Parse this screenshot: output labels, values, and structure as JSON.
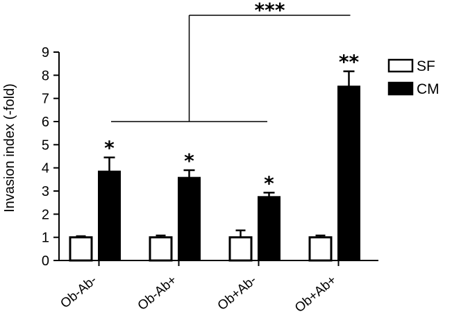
{
  "chart_data": {
    "type": "bar",
    "ylabel": "Invasion index (-fold)",
    "xlabel": "",
    "title": "",
    "ylim": [
      0,
      9
    ],
    "yticks": [
      "0",
      "1",
      "2",
      "3",
      "4",
      "5",
      "6",
      "7",
      "8",
      "9"
    ],
    "categories": [
      "Ob-Ab-",
      "Ob-Ab+",
      "Ob+Ab-",
      "Ob+Ab+"
    ],
    "series": [
      {
        "name": "SF",
        "values": [
          1.0,
          1.0,
          1.0,
          1.0
        ],
        "errors": [
          0.05,
          0.08,
          0.3,
          0.08
        ],
        "color": "#ffffff"
      },
      {
        "name": "CM",
        "values": [
          3.85,
          3.58,
          2.75,
          7.52
        ],
        "errors": [
          0.6,
          0.32,
          0.18,
          0.65
        ],
        "color": "#000000"
      }
    ],
    "annotations": [
      "*",
      "*",
      "*",
      "**"
    ],
    "bracket_label": "***",
    "legend_position": "top-right",
    "grid": false
  }
}
